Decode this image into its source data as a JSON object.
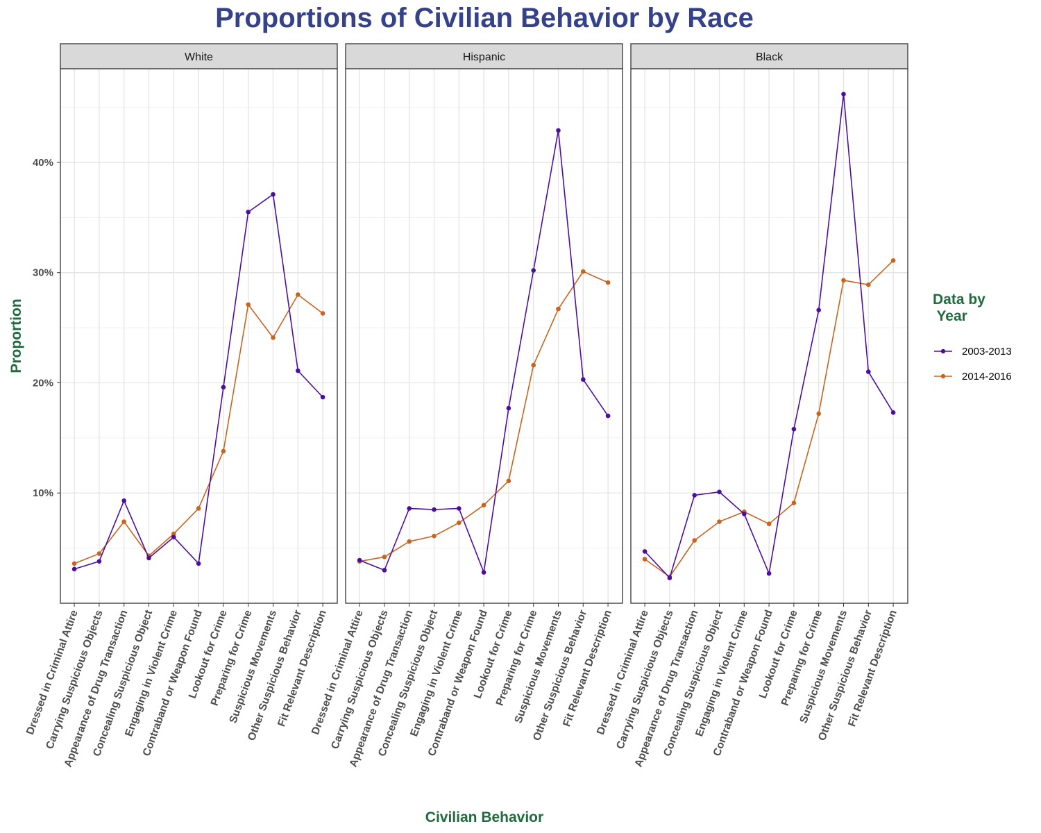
{
  "chart_data": {
    "type": "line",
    "title": "Proportions of Civilian Behavior by Race",
    "xlabel": "Civilian Behavior",
    "ylabel": "Proportion",
    "ylim": [
      0,
      48.5
    ],
    "y_ticks": [
      10,
      20,
      30,
      40
    ],
    "y_tick_labels": [
      "10%",
      "20%",
      "30%",
      "40%"
    ],
    "grid": true,
    "legend": {
      "title": "Data by\n Year",
      "position": "right"
    },
    "colors": {
      "2003-2013": "#4b0fa0",
      "2014-2016": "#c8641e",
      "title": "#35428a",
      "axis_title": "#1e6b3c"
    },
    "categories": [
      "Dressed in Criminal Attire",
      "Carrying Suspicious Objects",
      "Appearance of Drug Transaction",
      "Concealing Suspicious Object",
      "Engaging in Violent Crime",
      "Contraband or Weapon Found",
      "Lookout for Crime",
      "Preparing for Crime",
      "Suspicious Movements",
      "Other Suspicious Behavior",
      "Fit Relevant Description"
    ],
    "series_names": [
      "2003-2013",
      "2014-2016"
    ],
    "panels": [
      {
        "name": "White",
        "series": [
          {
            "name": "2003-2013",
            "values": [
              3.1,
              3.8,
              9.3,
              4.1,
              6.0,
              3.6,
              19.6,
              35.5,
              37.1,
              21.1,
              18.7
            ]
          },
          {
            "name": "2014-2016",
            "values": [
              3.6,
              4.5,
              7.4,
              4.3,
              6.3,
              8.6,
              13.8,
              27.1,
              24.1,
              28.0,
              26.3
            ]
          }
        ]
      },
      {
        "name": "Hispanic",
        "series": [
          {
            "name": "2003-2013",
            "values": [
              3.9,
              3.0,
              8.6,
              8.5,
              8.6,
              2.8,
              17.7,
              30.2,
              42.9,
              20.3,
              17.0
            ]
          },
          {
            "name": "2014-2016",
            "values": [
              3.8,
              4.2,
              5.6,
              6.1,
              7.3,
              8.9,
              11.1,
              21.6,
              26.7,
              30.1,
              29.1
            ]
          }
        ]
      },
      {
        "name": "Black",
        "series": [
          {
            "name": "2003-2013",
            "values": [
              4.7,
              2.3,
              9.8,
              10.1,
              8.1,
              2.7,
              15.8,
              26.6,
              46.2,
              21.0,
              17.3
            ]
          },
          {
            "name": "2014-2016",
            "values": [
              4.0,
              2.4,
              5.7,
              7.4,
              8.3,
              7.2,
              9.1,
              17.2,
              29.3,
              28.9,
              31.1
            ]
          }
        ]
      }
    ]
  }
}
